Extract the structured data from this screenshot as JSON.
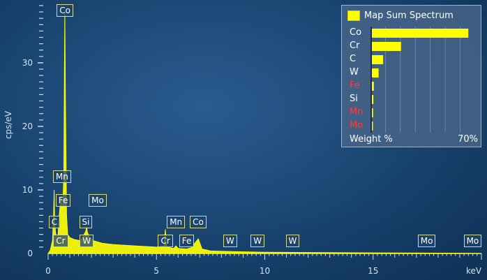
{
  "chart_data": {
    "type": "line",
    "title": "",
    "xlabel": "keV",
    "ylabel": "cps/eV",
    "xlim": [
      0,
      20
    ],
    "ylim": [
      0,
      39
    ],
    "x_ticks": [
      0,
      5,
      10,
      15
    ],
    "y_ticks": [
      0,
      10,
      20,
      30
    ],
    "grid": false,
    "series": [
      {
        "color": "#ffff00",
        "x": [
          0.0,
          0.1,
          0.2,
          0.25,
          0.277,
          0.3,
          0.35,
          0.45,
          0.5,
          0.55,
          0.6,
          0.64,
          0.68,
          0.72,
          0.77,
          0.8,
          0.85,
          0.9,
          1.0,
          1.2,
          1.5,
          1.74,
          1.78,
          1.8,
          1.9,
          2.1,
          2.3,
          2.5,
          3.0,
          4.0,
          5.0,
          5.35,
          5.41,
          5.47,
          5.8,
          5.9,
          6.0,
          6.4,
          6.6,
          6.93,
          7.1,
          7.5,
          8.5,
          10.0,
          12.0,
          15.0,
          18.0,
          20.0
        ],
        "y": [
          0.0,
          0.5,
          2.0,
          6.0,
          10.0,
          5.0,
          3.0,
          2.5,
          5.5,
          7.5,
          9.0,
          7.0,
          8.0,
          12.0,
          38.0,
          24.0,
          6.0,
          3.0,
          2.5,
          2.2,
          2.0,
          3.5,
          4.2,
          3.5,
          2.5,
          2.0,
          1.8,
          1.6,
          1.4,
          1.2,
          1.0,
          1.2,
          3.8,
          1.0,
          0.8,
          1.2,
          0.8,
          0.7,
          0.9,
          2.3,
          0.7,
          0.4,
          0.3,
          0.2,
          0.15,
          0.1,
          0.05,
          0.0
        ]
      }
    ],
    "peak_labels": [
      {
        "text": "Co",
        "x": 0.78
      },
      {
        "text": "Cr",
        "x": 0.57
      },
      {
        "text": "C",
        "x": 0.28
      },
      {
        "text": "Fe",
        "x": 0.7
      },
      {
        "text": "Mn",
        "x": 0.64
      },
      {
        "text": "W",
        "x": 1.78
      },
      {
        "text": "Si",
        "x": 1.74
      },
      {
        "text": "Mo",
        "x": 2.29
      },
      {
        "text": "Cr",
        "x": 5.41
      },
      {
        "text": "Mn",
        "x": 5.9
      },
      {
        "text": "Fe",
        "x": 6.4
      },
      {
        "text": "Co",
        "x": 6.93
      },
      {
        "text": "W",
        "x": 8.4
      },
      {
        "text": "W",
        "x": 9.67
      },
      {
        "text": "W",
        "x": 11.29
      },
      {
        "text": "Mo",
        "x": 17.48
      },
      {
        "text": "Mo",
        "x": 19.6
      }
    ],
    "legend": {
      "title": "Map Sum Spectrum",
      "placement": "top-right",
      "xlabel": "Weight %",
      "xmax_label": "70%",
      "xmax": 70,
      "swatch_color": "#ffff00",
      "bar_color": "#ffff00",
      "elements": [
        {
          "name": "Co",
          "value": 64.5,
          "color": "#ffffff"
        },
        {
          "name": "Cr",
          "value": 19.5,
          "color": "#ffffff"
        },
        {
          "name": "C",
          "value": 7.5,
          "color": "#ffffff"
        },
        {
          "name": "W",
          "value": 4.5,
          "color": "#ffffff"
        },
        {
          "name": "Fe",
          "value": 1.3,
          "color": "#ff3b3b"
        },
        {
          "name": "Si",
          "value": 1.0,
          "color": "#ffffff"
        },
        {
          "name": "Mn",
          "value": 0.8,
          "color": "#ff3b3b"
        },
        {
          "name": "Mo",
          "value": 0.6,
          "color": "#ff3b3b"
        }
      ]
    }
  }
}
